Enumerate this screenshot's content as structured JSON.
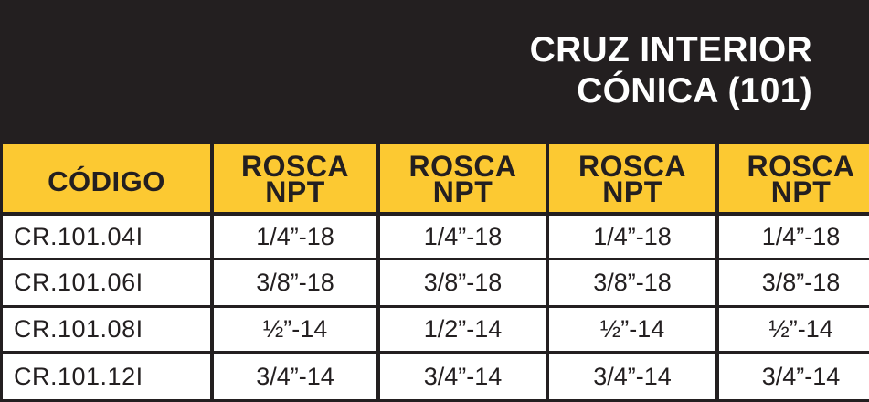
{
  "title": {
    "line1": "CRUZ INTERIOR",
    "line2": "CÓNICA (101)"
  },
  "table": {
    "headers": [
      {
        "label": "CÓDIGO"
      },
      {
        "line1": "ROSCA",
        "line2": "NPT"
      },
      {
        "line1": "ROSCA",
        "line2": "NPT"
      },
      {
        "line1": "ROSCA",
        "line2": "NPT"
      },
      {
        "line1": "ROSCA",
        "line2": "NPT"
      }
    ],
    "rows": [
      [
        "CR.101.04I",
        "1/4”-18",
        "1/4”-18",
        "1/4”-18",
        "1/4”-18"
      ],
      [
        "CR.101.06I",
        "3/8”-18",
        "3/8”-18",
        "3/8”-18",
        "3/8”-18"
      ],
      [
        "CR.101.08I",
        "½”-14",
        "1/2”-14",
        "½”-14",
        "½”-14"
      ],
      [
        "CR.101.12I",
        "3/4”-14",
        "3/4”-14",
        "3/4”-14",
        "3/4”-14"
      ]
    ]
  },
  "colors": {
    "background": "#231f20",
    "header_fill": "#fcc932",
    "cell_fill": "#ffffff",
    "text_dark": "#231f20",
    "text_light": "#ffffff"
  }
}
